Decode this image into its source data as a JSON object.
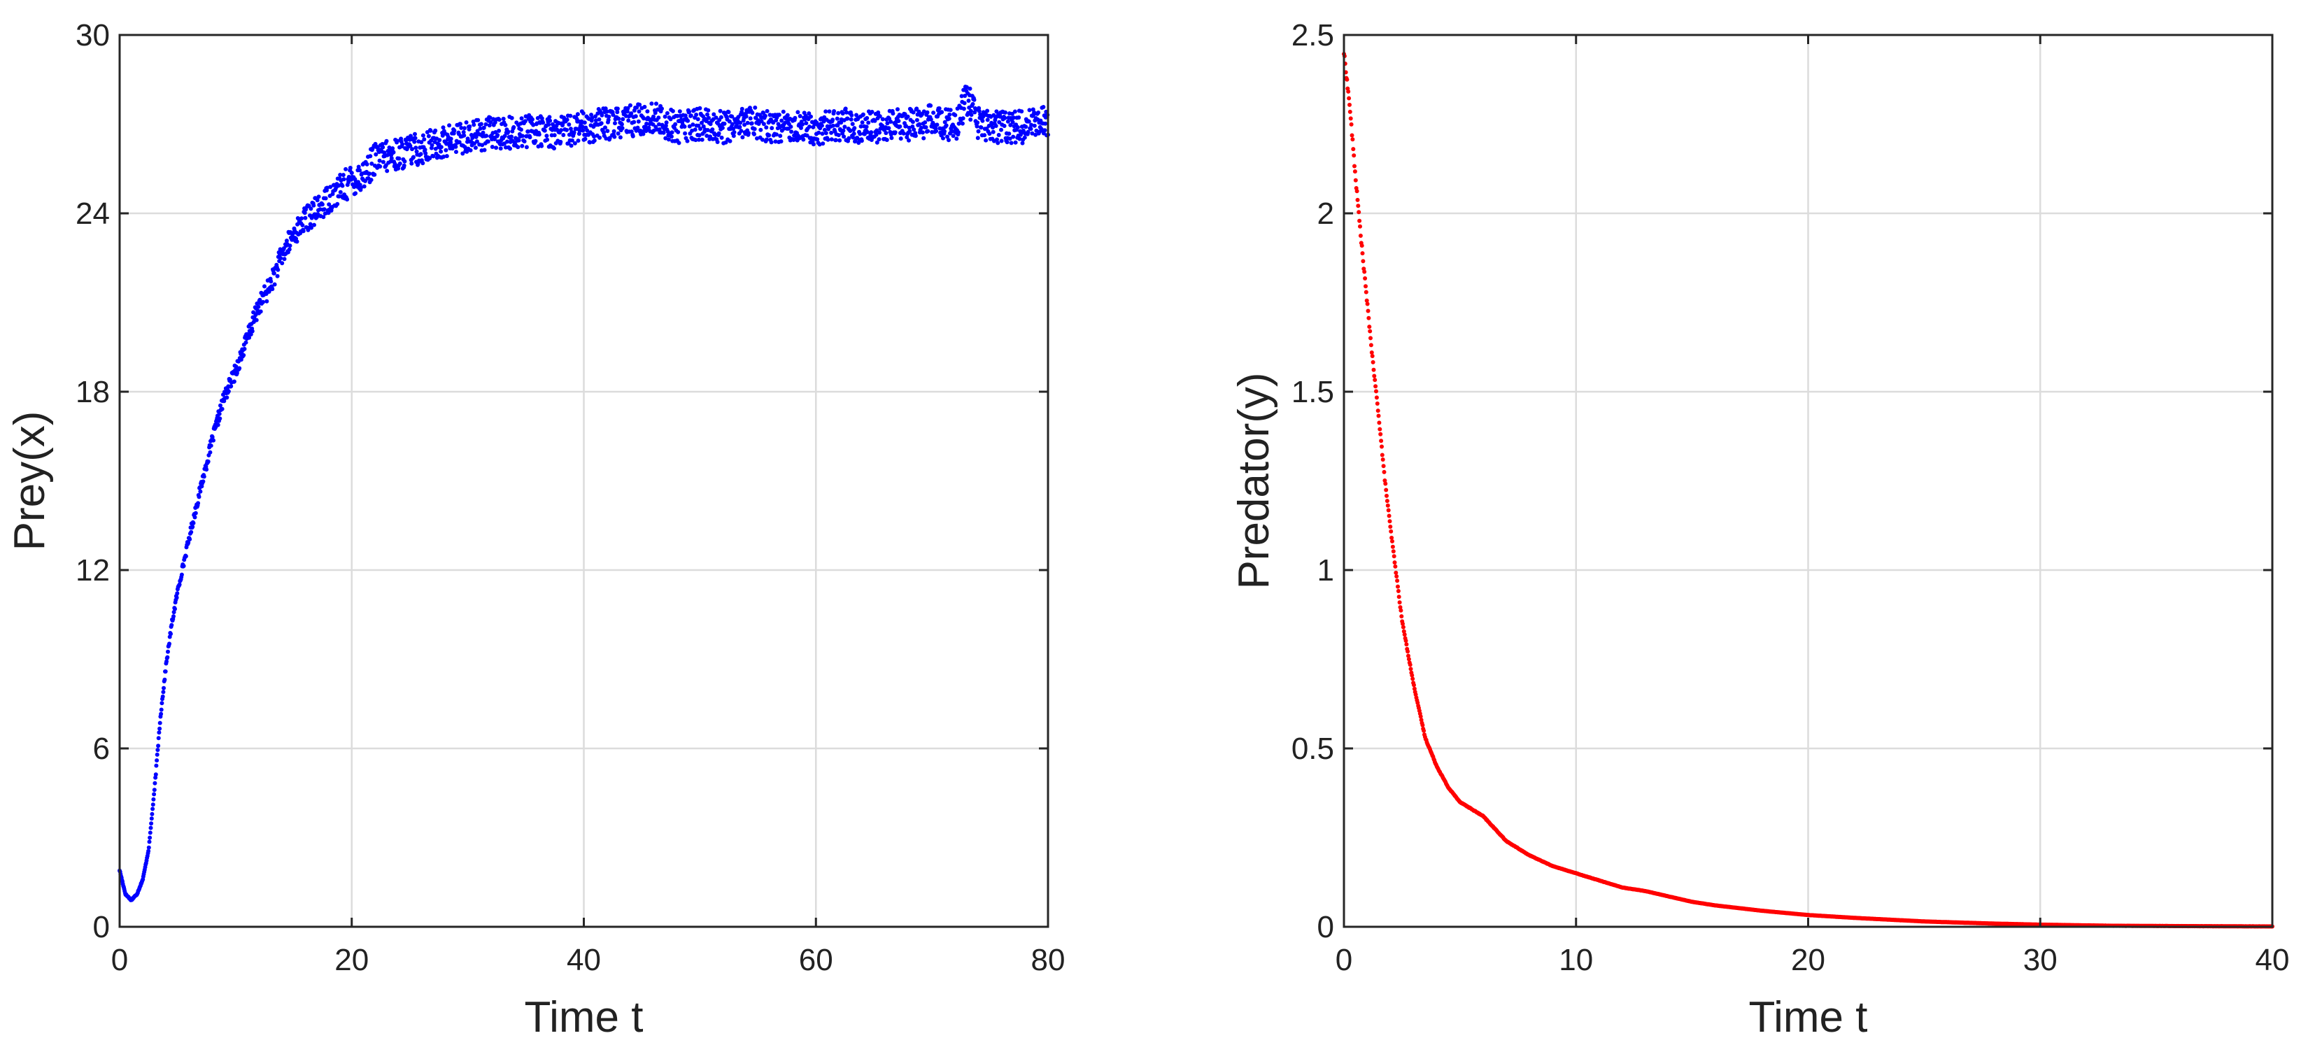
{
  "chart_data": [
    {
      "type": "scatter",
      "xlabel": "Time t",
      "ylabel": "Prey(x)",
      "xlim": [
        0,
        80
      ],
      "ylim": [
        0,
        30
      ],
      "xticks": [
        0,
        20,
        40,
        60,
        80
      ],
      "yticks": [
        0,
        6,
        12,
        18,
        24,
        30
      ],
      "grid": true,
      "color": "#0000ff",
      "series": [
        {
          "x": [
            0,
            0.5,
            1,
            1.5,
            2,
            2.5,
            3,
            3.5,
            4,
            4.5,
            5,
            6,
            7,
            8,
            9,
            10,
            11,
            12,
            13,
            14,
            15,
            16,
            17,
            18,
            19,
            20,
            21,
            22,
            23,
            24,
            25,
            26,
            27,
            28,
            29,
            30,
            32,
            34,
            36,
            38,
            40,
            42,
            44,
            46,
            48,
            50,
            52,
            54,
            56,
            58,
            60,
            62,
            64,
            66,
            68,
            70,
            72,
            73,
            74,
            76,
            78,
            80
          ],
          "y": [
            1.9,
            1.1,
            0.9,
            1.1,
            1.6,
            2.6,
            4.6,
            7.0,
            8.8,
            10.2,
            11.3,
            13.1,
            14.8,
            16.4,
            17.8,
            18.7,
            19.8,
            20.9,
            21.6,
            22.6,
            23.3,
            23.8,
            24.1,
            24.5,
            24.8,
            25.1,
            25.3,
            25.8,
            25.9,
            26.0,
            26.1,
            26.2,
            26.3,
            26.4,
            26.5,
            26.6,
            26.7,
            26.7,
            26.8,
            26.7,
            26.9,
            27.0,
            27.1,
            27.2,
            26.9,
            27.0,
            26.9,
            27.1,
            26.9,
            27.0,
            26.8,
            27.0,
            26.9,
            26.9,
            27.0,
            27.1,
            26.9,
            27.9,
            27.0,
            26.9,
            26.9,
            27.1
          ]
        }
      ]
    },
    {
      "type": "scatter",
      "xlabel": "Time t",
      "ylabel": "Predator(y)",
      "xlim": [
        0,
        40
      ],
      "ylim": [
        0,
        2.5
      ],
      "xticks": [
        0,
        10,
        20,
        30,
        40
      ],
      "yticks": [
        0,
        0.5,
        1,
        1.5,
        2,
        2.5
      ],
      "grid": true,
      "color": "#ff0000",
      "series": [
        {
          "x": [
            0,
            0.25,
            0.5,
            0.75,
            1,
            1.25,
            1.5,
            1.75,
            2,
            2.5,
            3,
            3.5,
            4,
            4.5,
            5,
            5.5,
            6,
            7,
            8,
            9,
            10,
            11,
            12,
            13,
            14,
            15,
            16,
            18,
            20,
            22,
            25,
            28,
            30,
            33,
            36,
            40
          ],
          "y": [
            2.45,
            2.3,
            2.1,
            1.92,
            1.75,
            1.58,
            1.43,
            1.26,
            1.12,
            0.86,
            0.68,
            0.53,
            0.45,
            0.39,
            0.35,
            0.33,
            0.31,
            0.24,
            0.2,
            0.17,
            0.15,
            0.13,
            0.11,
            0.1,
            0.085,
            0.07,
            0.06,
            0.045,
            0.033,
            0.025,
            0.015,
            0.009,
            0.006,
            0.003,
            0.002,
            0.001
          ]
        }
      ]
    }
  ]
}
